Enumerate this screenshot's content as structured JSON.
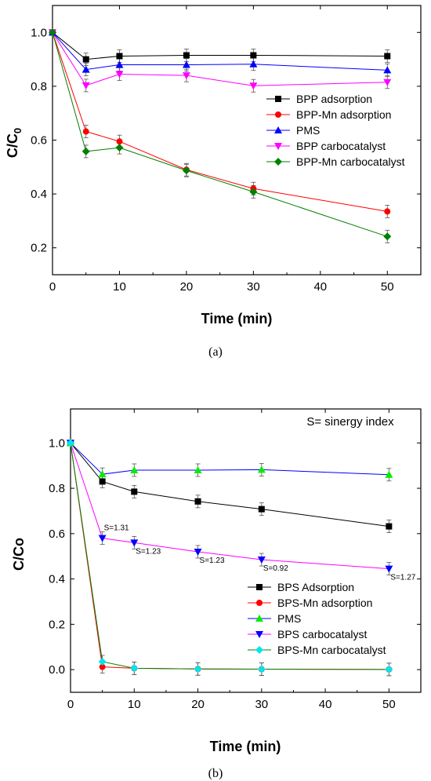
{
  "chart_data": [
    {
      "type": "line",
      "id": "a",
      "caption": "(a)",
      "xlabel": "Time (min)",
      "ylabel_main": "C/C",
      "ylabel_sub": "0",
      "xlim": [
        0,
        55
      ],
      "ylim": [
        0.1,
        1.1
      ],
      "xticks": [
        0,
        10,
        20,
        30,
        40,
        50
      ],
      "yticks": [
        0.2,
        0.4,
        0.6,
        0.8,
        1.0
      ],
      "ytick_labels": [
        "0.2",
        "0.4",
        "0.6",
        "0.8",
        "1.0"
      ],
      "legend_position": "middle-right",
      "series": [
        {
          "name": "BPP adsorption",
          "color": "#000000",
          "marker": "square",
          "x": [
            0,
            5,
            10,
            20,
            30,
            50
          ],
          "y": [
            1.0,
            0.9,
            0.912,
            0.915,
            0.915,
            0.912
          ]
        },
        {
          "name": "BPP-Mn adsorption",
          "color": "#ff0000",
          "marker": "circle",
          "x": [
            0,
            5,
            10,
            20,
            30,
            50
          ],
          "y": [
            1.0,
            0.632,
            0.595,
            0.49,
            0.42,
            0.335
          ]
        },
        {
          "name": "PMS",
          "color": "#0000ff",
          "marker": "triangle-up",
          "x": [
            0,
            5,
            10,
            20,
            30,
            50
          ],
          "y": [
            1.0,
            0.862,
            0.88,
            0.88,
            0.882,
            0.86
          ]
        },
        {
          "name": "BPP carbocatalyst",
          "color": "#ff00ff",
          "marker": "triangle-down",
          "x": [
            0,
            5,
            10,
            20,
            30,
            50
          ],
          "y": [
            1.0,
            0.803,
            0.845,
            0.84,
            0.802,
            0.815
          ]
        },
        {
          "name": "BPP-Mn carbocatalyst",
          "color": "#008000",
          "marker": "diamond",
          "x": [
            0,
            5,
            10,
            20,
            30,
            50
          ],
          "y": [
            1.0,
            0.558,
            0.572,
            0.487,
            0.408,
            0.242
          ]
        }
      ]
    },
    {
      "type": "line",
      "id": "b",
      "caption": "(b)",
      "xlabel": "Time (min)",
      "ylabel_main": "C/Co",
      "xlim": [
        0,
        55
      ],
      "ylim": [
        -0.1,
        1.15
      ],
      "xticks": [
        0,
        10,
        20,
        30,
        40,
        50
      ],
      "yticks": [
        0.0,
        0.2,
        0.4,
        0.6,
        0.8,
        1.0
      ],
      "ytick_labels": [
        "0.0",
        "0.2",
        "0.4",
        "0.6",
        "0.8",
        "1.0"
      ],
      "legend_position": "bottom-right",
      "note": "S= sinergy index",
      "annotations": [
        {
          "text": "S=1.31",
          "x": 5,
          "y": 0.58
        },
        {
          "text": "S=1.23",
          "x": 10,
          "y": 0.56
        },
        {
          "text": "S=1.23",
          "x": 20,
          "y": 0.52
        },
        {
          "text": "S=0.92",
          "x": 30,
          "y": 0.485
        },
        {
          "text": "S=1.27",
          "x": 50,
          "y": 0.445
        }
      ],
      "series": [
        {
          "name": "BPS Adsorption",
          "color": "#000000",
          "marker": "square",
          "x": [
            0,
            5,
            10,
            20,
            30,
            50
          ],
          "y": [
            1.0,
            0.83,
            0.785,
            0.742,
            0.708,
            0.632
          ]
        },
        {
          "name": "BPS-Mn adsorption",
          "color": "#ff0000",
          "marker": "circle",
          "x": [
            0,
            5,
            10,
            20,
            30,
            50
          ],
          "y": [
            1.0,
            0.012,
            0.006,
            0.003,
            0.002,
            0.001
          ]
        },
        {
          "name": "PMS",
          "color": "#00ee00",
          "line_color": "#0000ff",
          "marker": "triangle-up",
          "x": [
            0,
            5,
            10,
            20,
            30,
            50
          ],
          "y": [
            1.0,
            0.862,
            0.88,
            0.88,
            0.882,
            0.86
          ]
        },
        {
          "name": "BPS carbocatalyst",
          "color": "#0000ff",
          "line_color": "#ff00ff",
          "marker": "triangle-down",
          "x": [
            0,
            5,
            10,
            20,
            30,
            50
          ],
          "y": [
            1.0,
            0.58,
            0.56,
            0.52,
            0.485,
            0.445
          ]
        },
        {
          "name": "BPS-Mn carbocatalyst",
          "color": "#00e5ee",
          "line_color": "#008000",
          "marker": "diamond",
          "x": [
            0,
            5,
            10,
            20,
            30,
            50
          ],
          "y": [
            1.0,
            0.035,
            0.006,
            0.003,
            0.002,
            0.001
          ]
        }
      ]
    }
  ]
}
